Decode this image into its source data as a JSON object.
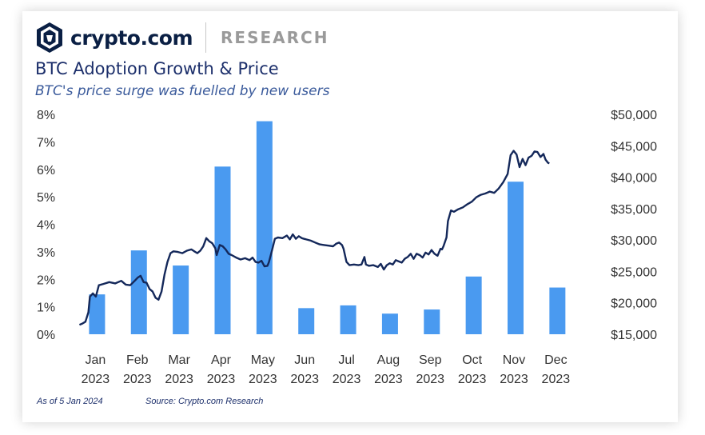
{
  "header": {
    "brand": "crypto.com",
    "section": "RESEARCH",
    "logo_icon": "lion-shield-icon"
  },
  "title": "BTC Adoption Growth & Price",
  "subtitle": "BTC's price surge was fuelled by new users",
  "footer": {
    "as_of": "As of 5 Jan 2024",
    "source": "Source: Crypto.com Research"
  },
  "colors": {
    "bar": "#4a9af0",
    "line": "#14285a",
    "title": "#1c2f6b",
    "brand": "#0a1f44"
  },
  "chart_data": {
    "type": "bar",
    "title": "BTC Adoption Growth & Price",
    "categories": [
      {
        "month": "Jan",
        "year": "2023"
      },
      {
        "month": "Feb",
        "year": "2023"
      },
      {
        "month": "Mar",
        "year": "2023"
      },
      {
        "month": "Apr",
        "year": "2023"
      },
      {
        "month": "May",
        "year": "2023"
      },
      {
        "month": "Jun",
        "year": "2023"
      },
      {
        "month": "Jul",
        "year": "2023"
      },
      {
        "month": "Aug",
        "year": "2023"
      },
      {
        "month": "Sep",
        "year": "2023"
      },
      {
        "month": "Oct",
        "year": "2023"
      },
      {
        "month": "Nov",
        "year": "2023"
      },
      {
        "month": "Dec",
        "year": "2023"
      }
    ],
    "series": [
      {
        "name": "Adoption growth",
        "axis": "left",
        "type": "bar",
        "values": [
          1.45,
          3.05,
          2.5,
          6.1,
          7.75,
          0.95,
          1.05,
          0.75,
          0.9,
          2.1,
          5.55,
          1.7
        ]
      },
      {
        "name": "BTC price",
        "axis": "right",
        "type": "line",
        "points": [
          [
            0.0,
            16500
          ],
          [
            0.1,
            16700
          ],
          [
            0.2,
            17000
          ],
          [
            0.3,
            18500
          ],
          [
            0.35,
            21000
          ],
          [
            0.45,
            21500
          ],
          [
            0.55,
            21000
          ],
          [
            0.65,
            22800
          ],
          [
            0.8,
            23000
          ],
          [
            1.0,
            23300
          ],
          [
            1.2,
            23100
          ],
          [
            1.4,
            23500
          ],
          [
            1.55,
            22900
          ],
          [
            1.7,
            22800
          ],
          [
            1.85,
            23500
          ],
          [
            1.95,
            24000
          ],
          [
            2.05,
            24300
          ],
          [
            2.15,
            23300
          ],
          [
            2.25,
            23200
          ],
          [
            2.35,
            22200
          ],
          [
            2.45,
            21800
          ],
          [
            2.55,
            20800
          ],
          [
            2.65,
            20500
          ],
          [
            2.75,
            21800
          ],
          [
            2.85,
            24500
          ],
          [
            2.95,
            26500
          ],
          [
            3.05,
            27900
          ],
          [
            3.15,
            28200
          ],
          [
            3.3,
            28100
          ],
          [
            3.45,
            27900
          ],
          [
            3.6,
            28300
          ],
          [
            3.75,
            28500
          ],
          [
            3.85,
            28200
          ],
          [
            3.95,
            27900
          ],
          [
            4.05,
            28300
          ],
          [
            4.15,
            29000
          ],
          [
            4.25,
            30300
          ],
          [
            4.35,
            29800
          ],
          [
            4.45,
            29500
          ],
          [
            4.55,
            28700
          ],
          [
            4.6,
            27600
          ],
          [
            4.7,
            29200
          ],
          [
            4.8,
            29000
          ],
          [
            4.9,
            28500
          ],
          [
            5.0,
            27800
          ],
          [
            5.1,
            27600
          ],
          [
            5.25,
            27200
          ],
          [
            5.4,
            26900
          ],
          [
            5.55,
            27100
          ],
          [
            5.7,
            26800
          ],
          [
            5.8,
            27200
          ],
          [
            5.9,
            26500
          ],
          [
            6.0,
            26400
          ],
          [
            6.1,
            26700
          ],
          [
            6.2,
            25800
          ],
          [
            6.3,
            25900
          ],
          [
            6.35,
            26500
          ],
          [
            6.45,
            28300
          ],
          [
            6.55,
            30200
          ],
          [
            6.65,
            30400
          ],
          [
            6.8,
            30300
          ],
          [
            6.95,
            30700
          ],
          [
            7.05,
            30100
          ],
          [
            7.15,
            30900
          ],
          [
            7.25,
            30200
          ],
          [
            7.35,
            30600
          ],
          [
            7.45,
            30300
          ],
          [
            7.6,
            30100
          ],
          [
            7.75,
            29900
          ],
          [
            7.9,
            29600
          ],
          [
            8.05,
            29300
          ],
          [
            8.2,
            29200
          ],
          [
            8.35,
            29100
          ],
          [
            8.5,
            29000
          ],
          [
            8.6,
            29400
          ],
          [
            8.7,
            29600
          ],
          [
            8.8,
            29200
          ],
          [
            8.85,
            28600
          ],
          [
            8.95,
            26500
          ],
          [
            9.05,
            26000
          ],
          [
            9.2,
            26100
          ],
          [
            9.35,
            26000
          ],
          [
            9.45,
            26100
          ],
          [
            9.55,
            27300
          ],
          [
            9.6,
            26100
          ],
          [
            9.7,
            25900
          ],
          [
            9.85,
            26000
          ],
          [
            10.0,
            25700
          ],
          [
            10.1,
            26200
          ],
          [
            10.2,
            25300
          ],
          [
            10.3,
            26000
          ],
          [
            10.4,
            26300
          ],
          [
            10.5,
            26100
          ],
          [
            10.6,
            26800
          ],
          [
            10.7,
            26600
          ],
          [
            10.8,
            26400
          ],
          [
            10.9,
            27000
          ],
          [
            11.0,
            27300
          ],
          [
            11.1,
            27800
          ],
          [
            11.2,
            27000
          ],
          [
            11.3,
            27800
          ],
          [
            11.4,
            27600
          ],
          [
            11.5,
            27200
          ],
          [
            11.6,
            28000
          ],
          [
            11.7,
            27700
          ],
          [
            11.8,
            28400
          ],
          [
            11.9,
            27800
          ],
          [
            12.0,
            27500
          ],
          [
            12.1,
            28600
          ],
          [
            12.15,
            28500
          ],
          [
            12.2,
            29000
          ],
          [
            12.3,
            30400
          ],
          [
            12.35,
            33000
          ],
          [
            12.45,
            34700
          ],
          [
            12.55,
            34500
          ],
          [
            12.7,
            34900
          ],
          [
            12.85,
            35200
          ],
          [
            13.0,
            35700
          ],
          [
            13.15,
            36100
          ],
          [
            13.3,
            36800
          ],
          [
            13.45,
            37200
          ],
          [
            13.6,
            37400
          ],
          [
            13.75,
            37700
          ],
          [
            13.9,
            37500
          ],
          [
            14.05,
            38200
          ],
          [
            14.2,
            39200
          ],
          [
            14.35,
            40500
          ],
          [
            14.45,
            43500
          ],
          [
            14.55,
            44200
          ],
          [
            14.65,
            43600
          ],
          [
            14.75,
            41600
          ],
          [
            14.85,
            42900
          ],
          [
            14.95,
            41900
          ],
          [
            15.05,
            43100
          ],
          [
            15.15,
            43400
          ],
          [
            15.25,
            44100
          ],
          [
            15.35,
            44000
          ],
          [
            15.45,
            43200
          ],
          [
            15.55,
            43700
          ],
          [
            15.62,
            42800
          ],
          [
            15.7,
            42300
          ],
          [
            15.75,
            42200
          ]
        ]
      }
    ],
    "left_axis": {
      "min": 0,
      "max": 8,
      "ticks": [
        "0%",
        "1%",
        "2%",
        "3%",
        "4%",
        "5%",
        "6%",
        "7%",
        "8%"
      ]
    },
    "right_axis": {
      "min": 15000,
      "max": 50000,
      "ticks": [
        "$15,000",
        "$20,000",
        "$25,000",
        "$30,000",
        "$35,000",
        "$40,000",
        "$45,000",
        "$50,000"
      ]
    },
    "grid": false,
    "legend": "none"
  }
}
